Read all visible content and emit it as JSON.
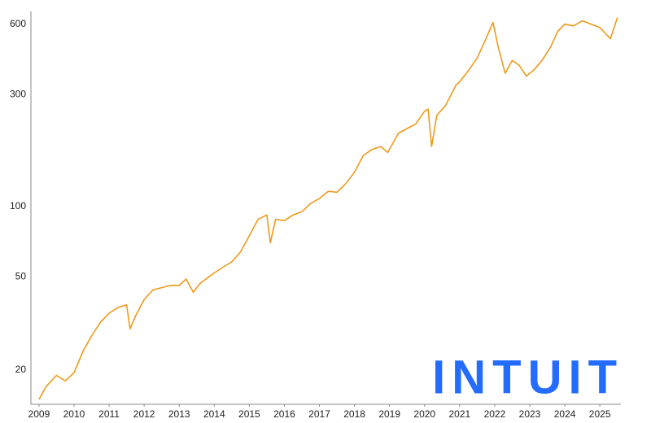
{
  "chart_data": {
    "type": "line",
    "x": [
      2009.0,
      2009.2,
      2009.5,
      2009.75,
      2010.0,
      2010.25,
      2010.5,
      2010.75,
      2011.0,
      2011.25,
      2011.5,
      2011.6,
      2011.75,
      2012.0,
      2012.25,
      2012.5,
      2012.75,
      2013.0,
      2013.2,
      2013.4,
      2013.6,
      2014.0,
      2014.25,
      2014.5,
      2014.75,
      2015.0,
      2015.25,
      2015.5,
      2015.6,
      2015.75,
      2016.0,
      2016.25,
      2016.5,
      2016.75,
      2017.0,
      2017.25,
      2017.5,
      2017.75,
      2018.0,
      2018.25,
      2018.5,
      2018.75,
      2018.95,
      2019.25,
      2019.5,
      2019.75,
      2020.0,
      2020.1,
      2020.2,
      2020.35,
      2020.6,
      2020.9,
      2021.0,
      2021.25,
      2021.5,
      2021.75,
      2021.95,
      2022.1,
      2022.3,
      2022.5,
      2022.7,
      2022.9,
      2023.1,
      2023.35,
      2023.6,
      2023.8,
      2024.0,
      2024.25,
      2024.5,
      2024.75,
      2025.0,
      2025.3,
      2025.5
    ],
    "values": [
      15,
      17,
      19,
      18,
      19.5,
      24,
      28,
      32,
      35,
      37,
      38,
      30,
      34,
      40,
      44,
      45,
      46,
      46,
      49,
      43,
      47,
      52,
      55,
      58,
      64,
      75,
      88,
      92,
      70,
      88,
      87,
      92,
      95,
      103,
      108,
      116,
      115,
      125,
      140,
      165,
      175,
      180,
      170,
      205,
      215,
      225,
      255,
      260,
      180,
      245,
      270,
      330,
      340,
      380,
      430,
      520,
      610,
      480,
      370,
      420,
      400,
      360,
      380,
      420,
      480,
      560,
      600,
      590,
      620,
      600,
      580,
      520,
      640
    ],
    "color": "#ee9a1a",
    "log_y": true,
    "xlim": [
      2008.77,
      2025.6
    ],
    "xticks": [
      2009,
      2010,
      2011,
      2012,
      2013,
      2014,
      2015,
      2016,
      2017,
      2018,
      2019,
      2020,
      2021,
      2022,
      2023,
      2024,
      2025
    ],
    "ylim": [
      14.3,
      680
    ],
    "yticks": [
      20,
      50,
      100,
      300,
      600
    ],
    "grid": false,
    "logo": "INTUIT",
    "logo_color": "#236cff"
  }
}
